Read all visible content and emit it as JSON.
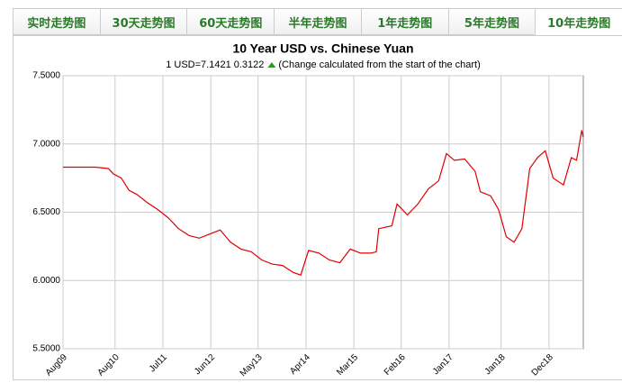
{
  "tabs": [
    "实时走势图",
    "30天走势图",
    "60天走势图",
    "半年走势图",
    "1年走势图",
    "5年走势图",
    "10年走势图"
  ],
  "active_tab": 6,
  "chart_data": {
    "type": "line",
    "title": "10 Year USD vs. Chinese Yuan",
    "subtitle": "1 USD=7.1421  0.3122",
    "note": "(Change calculated from the start of the chart)",
    "x": [
      2009.58,
      2009.9,
      2010.2,
      2010.45,
      2010.55,
      2010.7,
      2010.85,
      2011.0,
      2011.2,
      2011.4,
      2011.6,
      2011.8,
      2012.0,
      2012.2,
      2012.4,
      2012.6,
      2012.8,
      2013.0,
      2013.2,
      2013.4,
      2013.6,
      2013.8,
      2014.0,
      2014.15,
      2014.3,
      2014.5,
      2014.7,
      2014.9,
      2015.1,
      2015.3,
      2015.5,
      2015.6,
      2015.65,
      2015.9,
      2016.0,
      2016.2,
      2016.4,
      2016.6,
      2016.8,
      2016.95,
      2017.1,
      2017.3,
      2017.5,
      2017.6,
      2017.8,
      2017.95,
      2018.1,
      2018.25,
      2018.4,
      2018.55,
      2018.7,
      2018.85,
      2019.0,
      2019.2,
      2019.35,
      2019.45,
      2019.55,
      2019.58
    ],
    "series": [
      {
        "name": "USD/CNY",
        "color": "#e00000",
        "values": [
          6.83,
          6.83,
          6.83,
          6.82,
          6.78,
          6.75,
          6.66,
          6.63,
          6.57,
          6.52,
          6.46,
          6.38,
          6.33,
          6.31,
          6.34,
          6.37,
          6.28,
          6.23,
          6.21,
          6.15,
          6.12,
          6.11,
          6.06,
          6.04,
          6.22,
          6.2,
          6.15,
          6.13,
          6.23,
          6.2,
          6.2,
          6.21,
          6.38,
          6.4,
          6.56,
          6.48,
          6.56,
          6.67,
          6.73,
          6.93,
          6.88,
          6.89,
          6.8,
          6.65,
          6.62,
          6.52,
          6.32,
          6.28,
          6.38,
          6.82,
          6.9,
          6.95,
          6.75,
          6.7,
          6.9,
          6.88,
          7.1,
          7.05
        ]
      }
    ],
    "xlim": [
      2009.58,
      2019.58
    ],
    "xticks": [
      {
        "value": 2009.58,
        "label": "Aug09"
      },
      {
        "value": 2010.58,
        "label": "Aug10"
      },
      {
        "value": 2011.5,
        "label": "Jul11"
      },
      {
        "value": 2012.42,
        "label": "Jun12"
      },
      {
        "value": 2013.33,
        "label": "May13"
      },
      {
        "value": 2014.25,
        "label": "Apr14"
      },
      {
        "value": 2015.17,
        "label": "Mar15"
      },
      {
        "value": 2016.08,
        "label": "Feb16"
      },
      {
        "value": 2017.0,
        "label": "Jan17"
      },
      {
        "value": 2018.0,
        "label": "Jan18"
      },
      {
        "value": 2018.92,
        "label": "Dec18"
      }
    ],
    "ylim": [
      5.5,
      7.5
    ],
    "yticks": [
      {
        "value": 5.5,
        "label": "5.5000"
      },
      {
        "value": 6.0,
        "label": "6.0000"
      },
      {
        "value": 6.5,
        "label": "6.5000"
      },
      {
        "value": 7.0,
        "label": "7.0000"
      },
      {
        "value": 7.5,
        "label": "7.5000"
      }
    ],
    "grid": true
  }
}
